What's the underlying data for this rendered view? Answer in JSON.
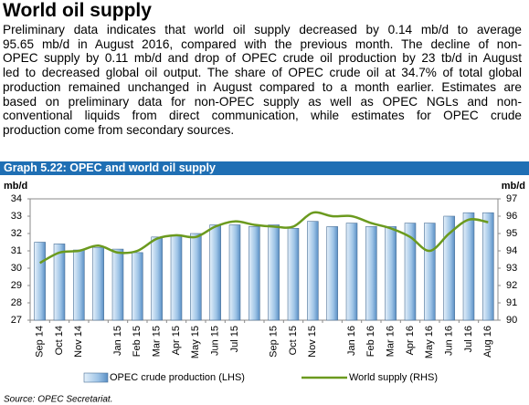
{
  "heading": "World oil supply",
  "paragraph_lines": [
    "Preliminary data indicates that world oil supply decreased by 0.14 mb/d to average",
    "95.65 mb/d in August 2016, compared with the previous month. The decline of non-",
    "OPEC supply by 0.11 mb/d and drop of OPEC crude oil production by 23 tb/d in August",
    "led to decreased global oil output. The share of OPEC crude oil at 34.7% of total global",
    "production remained unchanged in August compared to a month earlier. Estimates are",
    "based on preliminary data for non-OPEC supply as well as OPEC NGLs and non-",
    "conventional liquids from direct communication, while estimates for OPEC crude",
    "production come from secondary sources."
  ],
  "source": "Source: OPEC Secretariat.",
  "chart_data": {
    "type": "bar-line",
    "title": "Graph 5.22: OPEC and world oil supply",
    "y_unit": "mb/d",
    "y2_unit": "mb/d",
    "categories": [
      "Sep 14",
      "Oct 14",
      "Nov 14",
      null,
      "Jan 15",
      "Feb 15",
      "Mar 15",
      "Apr 15",
      "May 15",
      "Jun 15",
      "Jul 15",
      null,
      "Sep 15",
      "Oct 15",
      "Nov 15",
      null,
      "Jan 16",
      "Feb 16",
      "Mar 16",
      "Apr 16",
      "May 16",
      "Jun 16",
      "Jul 16",
      "Aug 16"
    ],
    "series": [
      {
        "name": "OPEC crude production (LHS)",
        "type": "bar",
        "color": "#9dc3e6",
        "values": [
          31.5,
          31.4,
          31.05,
          31.2,
          31.1,
          30.9,
          31.8,
          31.9,
          32.0,
          32.5,
          32.5,
          32.4,
          32.5,
          32.3,
          32.7,
          32.4,
          32.6,
          32.4,
          32.4,
          32.6,
          32.6,
          33.0,
          33.2,
          33.2
        ]
      },
      {
        "name": "World supply (RHS)",
        "type": "line",
        "axis": "y2",
        "color": "#6b9a1e",
        "values": [
          93.3,
          93.9,
          94.0,
          94.3,
          93.9,
          94.0,
          94.7,
          94.9,
          94.8,
          95.4,
          95.7,
          95.5,
          95.4,
          95.4,
          96.2,
          96.0,
          96.0,
          95.6,
          95.3,
          94.8,
          94.0,
          95.0,
          95.8,
          95.65
        ]
      }
    ],
    "ylim": [
      27,
      34
    ],
    "yticks": [
      27,
      28,
      29,
      30,
      31,
      32,
      33,
      34
    ],
    "y2lim": [
      90,
      97
    ],
    "y2ticks": [
      90,
      91,
      92,
      93,
      94,
      95,
      96,
      97
    ],
    "grid": false
  }
}
